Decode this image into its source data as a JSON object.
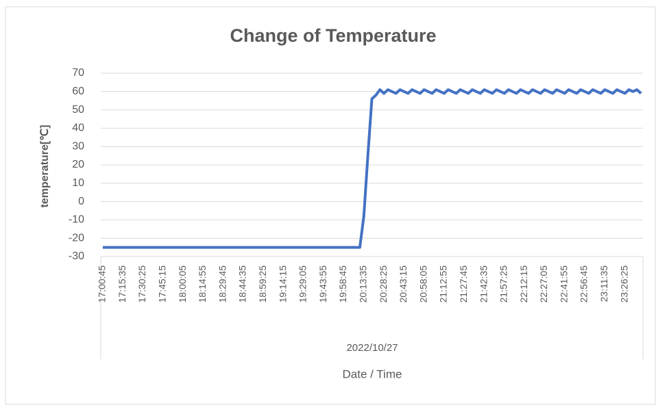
{
  "chart_data": {
    "type": "line",
    "title": "Change of Temperature",
    "y_label": "temperature[℃]",
    "x_label": "Date / Time",
    "x_group_label": "2022/10/27",
    "color": "#4472c4",
    "grid": true,
    "ylim": [
      -30,
      70
    ],
    "yticks": [
      -30,
      -20,
      -10,
      0,
      10,
      20,
      30,
      40,
      50,
      60,
      70
    ],
    "categories": [
      "17:00:45",
      null,
      null,
      null,
      null,
      "17:15:35",
      null,
      null,
      null,
      null,
      "17:30:25",
      null,
      null,
      null,
      null,
      "17:45:15",
      null,
      null,
      null,
      null,
      "18:00:05",
      null,
      null,
      null,
      null,
      "18:14:55",
      null,
      null,
      null,
      null,
      "18:29:45",
      null,
      null,
      null,
      null,
      "18:44:35",
      null,
      null,
      null,
      null,
      "18:59:25",
      null,
      null,
      null,
      null,
      "19:14:15",
      null,
      null,
      null,
      null,
      "19:29:05",
      null,
      null,
      null,
      null,
      "19:43:55",
      null,
      null,
      null,
      null,
      "19:58:45",
      null,
      null,
      null,
      null,
      "20:13:35",
      null,
      null,
      null,
      null,
      "20:28:25",
      null,
      null,
      null,
      null,
      "20:43:15",
      null,
      null,
      null,
      null,
      "20:58:05",
      null,
      null,
      null,
      null,
      "21:12:55",
      null,
      null,
      null,
      null,
      "21:27:45",
      null,
      null,
      null,
      null,
      "21:42:35",
      null,
      null,
      null,
      null,
      "21:57:25",
      null,
      null,
      null,
      null,
      "22:12:15",
      null,
      null,
      null,
      null,
      "22:27:05",
      null,
      null,
      null,
      null,
      "22:41:55",
      null,
      null,
      null,
      null,
      "22:56:45",
      null,
      null,
      null,
      null,
      "23:11:35",
      null,
      null,
      null,
      null,
      "23:26:25",
      null,
      null,
      null,
      null
    ],
    "values": [
      -25,
      -25,
      -25,
      -25,
      -25,
      -25,
      -25,
      -25,
      -25,
      -25,
      -25,
      -25,
      -25,
      -25,
      -25,
      -25,
      -25,
      -25,
      -25,
      -25,
      -25,
      -25,
      -25,
      -25,
      -25,
      -25,
      -25,
      -25,
      -25,
      -25,
      -25,
      -25,
      -25,
      -25,
      -25,
      -25,
      -25,
      -25,
      -25,
      -25,
      -25,
      -25,
      -25,
      -25,
      -25,
      -25,
      -25,
      -25,
      -25,
      -25,
      -25,
      -25,
      -25,
      -25,
      -25,
      -25,
      -25,
      -25,
      -25,
      -25,
      -25,
      -25,
      -25,
      -25,
      -25,
      -8,
      25,
      56,
      58,
      61,
      59,
      61,
      60,
      59,
      61,
      60,
      59,
      61,
      60,
      59,
      61,
      60,
      59,
      61,
      60,
      59,
      61,
      60,
      59,
      61,
      60,
      59,
      61,
      60,
      59,
      61,
      60,
      59,
      61,
      60,
      59,
      61,
      60,
      59,
      61,
      60,
      59,
      61,
      60,
      59,
      61,
      60,
      59,
      61,
      60,
      59,
      61,
      60,
      59,
      61,
      60,
      59,
      61,
      60,
      59,
      61,
      60,
      59,
      61,
      60,
      59,
      61,
      60,
      61,
      59
    ]
  }
}
